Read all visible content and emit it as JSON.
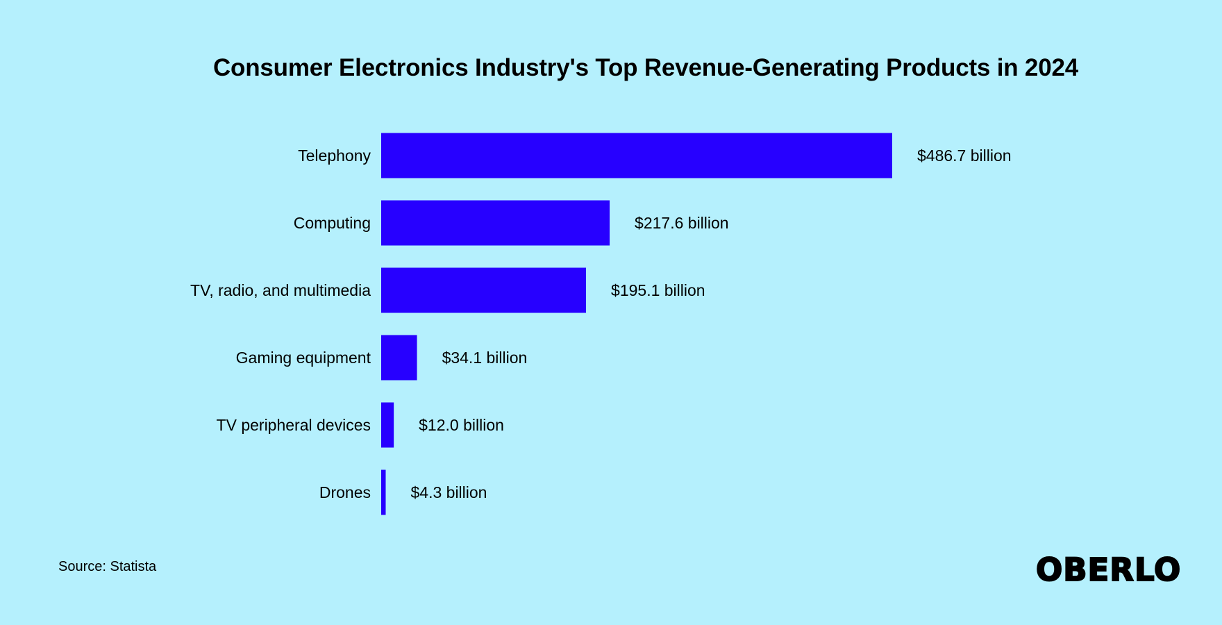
{
  "chart_data": {
    "type": "bar",
    "orientation": "horizontal",
    "title": "Consumer Electronics Industry's Top Revenue-Generating Products in 2024",
    "categories": [
      "Telephony",
      "Computing",
      "TV, radio, and multimedia",
      "Gaming equipment",
      "TV peripheral devices",
      "Drones"
    ],
    "values": [
      486.7,
      217.6,
      195.1,
      34.1,
      12.0,
      4.3
    ],
    "value_labels": [
      "$486.7 billion",
      "$217.6 billion",
      "$195.1 billion",
      "$34.1 billion",
      "$12.0 billion",
      "$4.3 billion"
    ],
    "unit": "billion USD",
    "bar_color": "#2700ff",
    "grid": false,
    "legend": "none"
  },
  "footer": {
    "source": "Source: Statista",
    "logo": "OBERLO"
  },
  "colors": {
    "background": "#b5f0fd",
    "text": "#000000"
  }
}
